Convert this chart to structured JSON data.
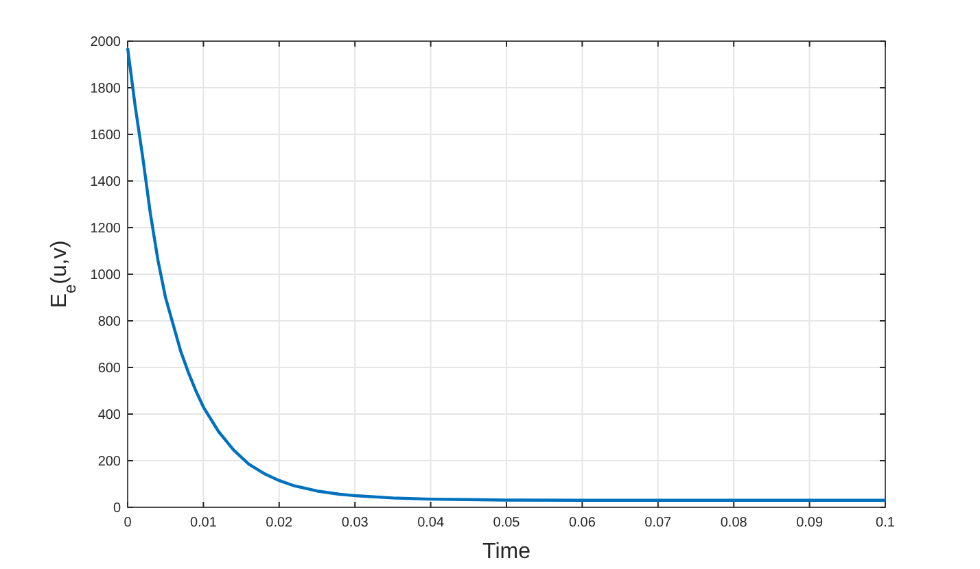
{
  "chart_data": {
    "type": "line",
    "xlabel": "Time",
    "ylabel": "E$_{e}$(u,v)",
    "x": [
      0,
      0.001,
      0.002,
      0.003,
      0.004,
      0.005,
      0.006,
      0.007,
      0.008,
      0.009,
      0.01,
      0.012,
      0.014,
      0.016,
      0.018,
      0.02,
      0.022,
      0.025,
      0.028,
      0.03,
      0.035,
      0.04,
      0.045,
      0.05,
      0.06,
      0.07,
      0.08,
      0.09,
      0.1
    ],
    "series": [
      {
        "color": "#0072bd",
        "values": [
          1970,
          1720,
          1500,
          1260,
          1060,
          900,
          785,
          670,
          580,
          500,
          430,
          325,
          245,
          185,
          145,
          115,
          92,
          70,
          56,
          50,
          40,
          35,
          33,
          31,
          30,
          30,
          30,
          30,
          30
        ]
      }
    ],
    "xlim": [
      0,
      0.1
    ],
    "xticks": [
      0,
      0.01,
      0.02,
      0.03,
      0.04,
      0.05,
      0.06,
      0.07,
      0.08,
      0.09,
      0.1
    ],
    "ylim": [
      0,
      2000
    ],
    "yticks": [
      0,
      200,
      400,
      600,
      800,
      1000,
      1200,
      1400,
      1600,
      1800,
      2000
    ],
    "grid": true,
    "marker": "none",
    "line_style": "solid"
  }
}
